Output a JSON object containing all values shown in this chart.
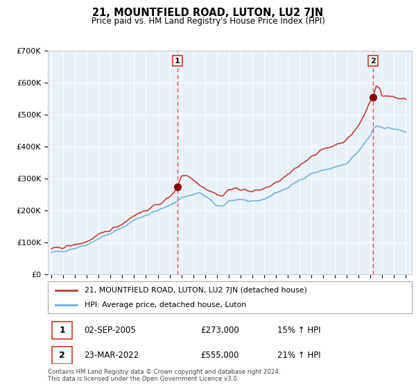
{
  "title": "21, MOUNTFIELD ROAD, LUTON, LU2 7JN",
  "subtitle": "Price paid vs. HM Land Registry's House Price Index (HPI)",
  "legend_line1": "21, MOUNTFIELD ROAD, LUTON, LU2 7JN (detached house)",
  "legend_line2": "HPI: Average price, detached house, Luton",
  "annotation1_date": "02-SEP-2005",
  "annotation1_price": "£273,000",
  "annotation1_hpi": "15% ↑ HPI",
  "annotation2_date": "23-MAR-2022",
  "annotation2_price": "£555,000",
  "annotation2_hpi": "21% ↑ HPI",
  "footer": "Contains HM Land Registry data © Crown copyright and database right 2024.\nThis data is licensed under the Open Government Licence v3.0.",
  "hpi_color": "#6baed6",
  "price_color": "#c0392b",
  "marker_color": "#8b0000",
  "vline_color": "#e05050",
  "bg_fill_color": "#ddeeff",
  "ylim": [
    0,
    700000
  ],
  "yticks": [
    0,
    100000,
    200000,
    300000,
    400000,
    500000,
    600000,
    700000
  ],
  "ytick_labels": [
    "£0",
    "£100K",
    "£200K",
    "£300K",
    "£400K",
    "£500K",
    "£600K",
    "£700K"
  ],
  "sale1_x": 2005.67,
  "sale1_y": 273000,
  "sale2_x": 2022.22,
  "sale2_y": 555000,
  "xmin": 1995.0,
  "xmax": 2025.5
}
